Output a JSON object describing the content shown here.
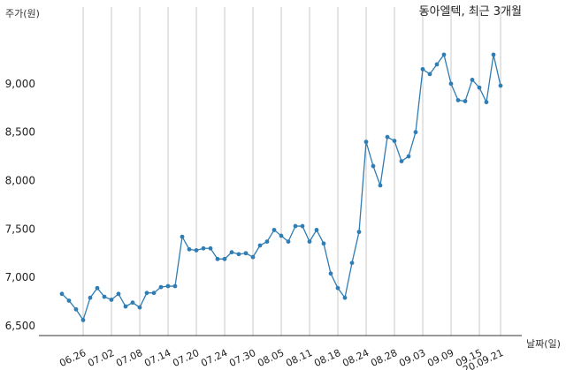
{
  "chart_data": {
    "type": "line",
    "title": "동아엘텍, 최근 3개월",
    "xlabel": "날짜(일)",
    "ylabel": "주가(원)",
    "ylim": [
      6500,
      9500
    ],
    "yticks": [
      6500,
      7000,
      7500,
      8000,
      8500,
      9000
    ],
    "ytick_labels": [
      "6,500",
      "7,000",
      "7,500",
      "8,000",
      "8,500",
      "9,000"
    ],
    "xtick_labels": [
      "06.26",
      "07.02",
      "07.08",
      "07.14",
      "07.20",
      "07.24",
      "07.30",
      "08.05",
      "08.11",
      "08.18",
      "08.24",
      "08.28",
      "09.03",
      "09.09",
      "09.15",
      "20.09.21"
    ],
    "xtick_index": [
      4,
      8,
      12,
      16,
      20,
      24,
      28,
      32,
      36,
      40,
      44,
      48,
      52,
      56,
      60,
      63
    ],
    "grid": "vertical",
    "line_color": "#2f7db3",
    "series": [
      {
        "values": [
          6830,
          6760,
          6670,
          6560,
          6790,
          6890,
          6800,
          6770,
          6830,
          6700,
          6740,
          6690,
          6840,
          6840,
          6900,
          6910,
          6910,
          7420,
          7290,
          7280,
          7300,
          7300,
          7190,
          7190,
          7260,
          7240,
          7250,
          7210,
          7330,
          7370,
          7490,
          7430,
          7370,
          7530,
          7530,
          7370,
          7490,
          7350,
          7040,
          6890,
          6790,
          7150,
          7470,
          8400,
          8150,
          7950,
          8450,
          8410,
          8200,
          8250,
          8500,
          9150,
          9100,
          9200,
          9300,
          9000,
          8830,
          8820,
          9040,
          8960,
          8810,
          9300,
          8980
        ]
      }
    ]
  }
}
